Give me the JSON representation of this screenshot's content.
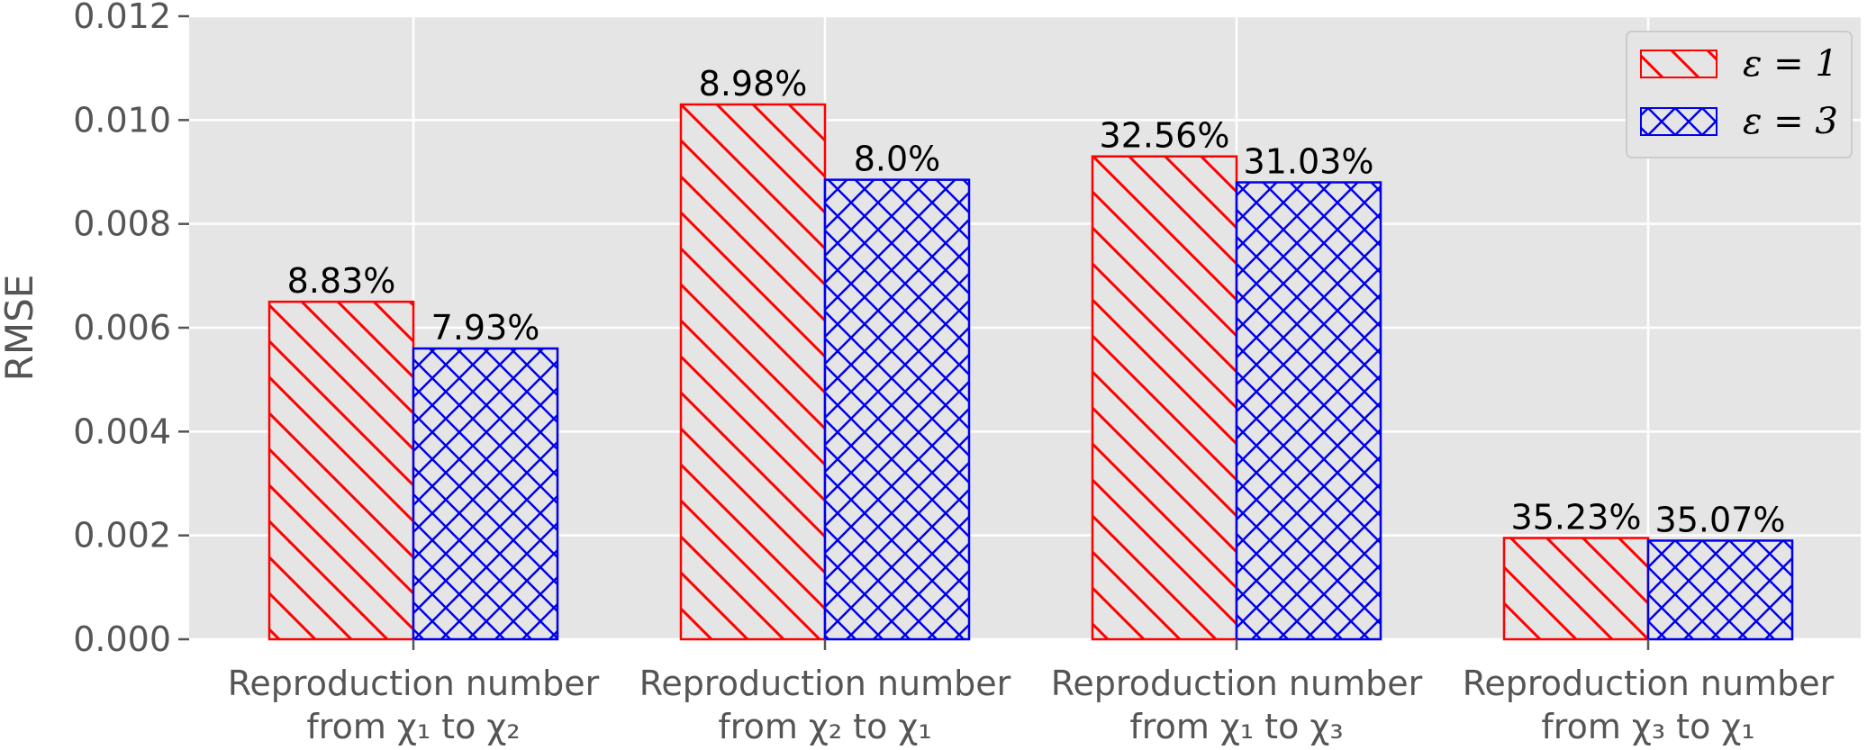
{
  "chart_data": {
    "type": "bar",
    "categories": [
      [
        "Reproduction number",
        "from χ₁ to χ₂"
      ],
      [
        "Reproduction number",
        "from χ₂ to χ₁"
      ],
      [
        "Reproduction number",
        "from χ₁ to χ₃"
      ],
      [
        "Reproduction number",
        "from χ₃ to χ₁"
      ]
    ],
    "series": [
      {
        "name": "ε = 1",
        "values": [
          0.0065,
          0.0103,
          0.0093,
          0.00195
        ],
        "labels": [
          "8.83%",
          "8.98%",
          "32.56%",
          "35.23%"
        ],
        "color": "#ff0000",
        "hatch": "diagonal"
      },
      {
        "name": "ε = 3",
        "values": [
          0.0056,
          0.00885,
          0.0088,
          0.0019
        ],
        "labels": [
          "7.93%",
          "8.0%",
          "31.03%",
          "35.07%"
        ],
        "color": "#0000ee",
        "hatch": "cross"
      }
    ],
    "ylabel": "RMSE",
    "ylim": [
      0,
      0.012
    ],
    "yticks": [
      "0.000",
      "0.002",
      "0.004",
      "0.006",
      "0.008",
      "0.010",
      "0.012"
    ],
    "grid": true,
    "legend": "top-right",
    "background": "#e5e5e5",
    "bar_fill": "#e5e5e5"
  }
}
